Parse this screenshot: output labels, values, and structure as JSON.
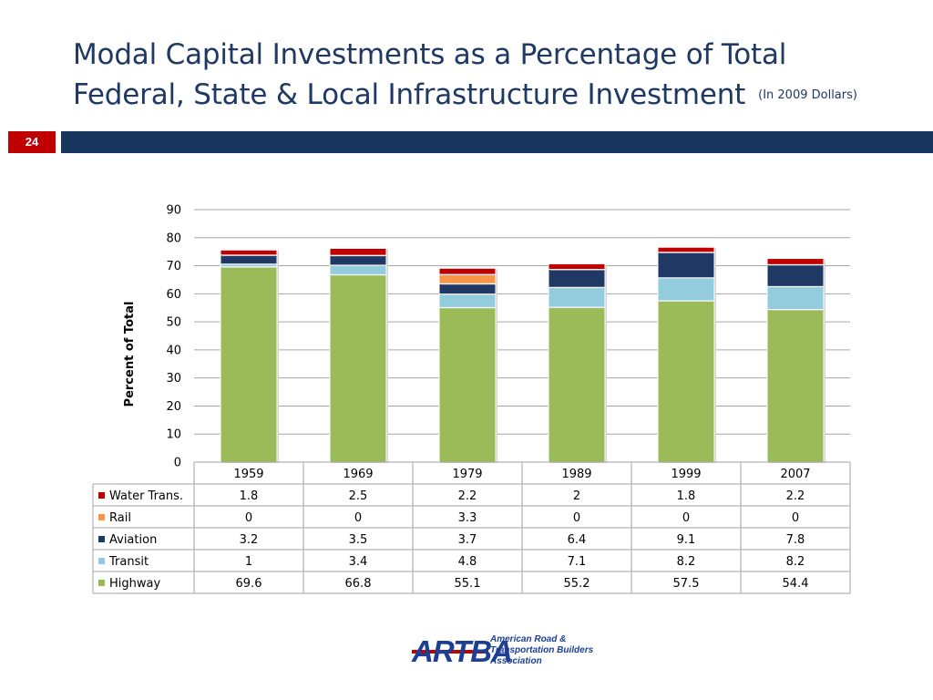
{
  "slide": {
    "title_line1": "Modal Capital Investments as a Percentage of Total",
    "title_line2": "Federal, State & Local Infrastructure Investment",
    "subtitle": "(In 2009 Dollars)",
    "page_number": "24"
  },
  "colors": {
    "title": "#1f3864",
    "page_badge": "#c00000",
    "title_bar": "#17375e"
  },
  "footer": {
    "logo_mark": "ARTBA",
    "logo_line1": "American Road &",
    "logo_line2": "Transportation Builders",
    "logo_line3": "Association"
  },
  "chart_data": {
    "type": "bar",
    "stacked": true,
    "categories": [
      "1959",
      "1969",
      "1979",
      "1989",
      "1999",
      "2007"
    ],
    "ylabel": "Percent of Total",
    "ylim": [
      0,
      90
    ],
    "yticks": [
      0,
      10,
      20,
      30,
      40,
      50,
      60,
      70,
      80,
      90
    ],
    "grid": true,
    "data_table": true,
    "series": [
      {
        "name": "Highway",
        "color": "#9bbb59",
        "values": [
          69.6,
          66.8,
          55.1,
          55.2,
          57.5,
          54.4
        ],
        "labels": [
          "69.6",
          "66.8",
          "55.1",
          "55.2",
          "57.5",
          "54.4"
        ]
      },
      {
        "name": "Transit",
        "color": "#93cddd",
        "values": [
          1,
          3.4,
          4.8,
          7.1,
          8.2,
          8.2
        ],
        "labels": [
          "1",
          "3.4",
          "4.8",
          "7.1",
          "8.2",
          "8.2"
        ]
      },
      {
        "name": "Aviation",
        "color": "#1f3864",
        "values": [
          3.2,
          3.5,
          3.7,
          6.4,
          9.1,
          7.8
        ],
        "labels": [
          "3.2",
          "3.5",
          "3.7",
          "6.4",
          "9.1",
          "7.8"
        ]
      },
      {
        "name": "Rail",
        "color": "#f79646",
        "values": [
          0,
          0,
          3.3,
          0,
          0,
          0
        ],
        "labels": [
          "0",
          "0",
          "3.3",
          "0",
          "0",
          "0"
        ]
      },
      {
        "name": "Water Trans.",
        "color": "#c00000",
        "values": [
          1.8,
          2.5,
          2.2,
          2,
          1.8,
          2.2
        ],
        "labels": [
          "1.8",
          "2.5",
          "2.2",
          "2",
          "1.8",
          "2.2"
        ]
      }
    ],
    "table_row_order": [
      "Water Trans.",
      "Rail",
      "Aviation",
      "Transit",
      "Highway"
    ]
  }
}
